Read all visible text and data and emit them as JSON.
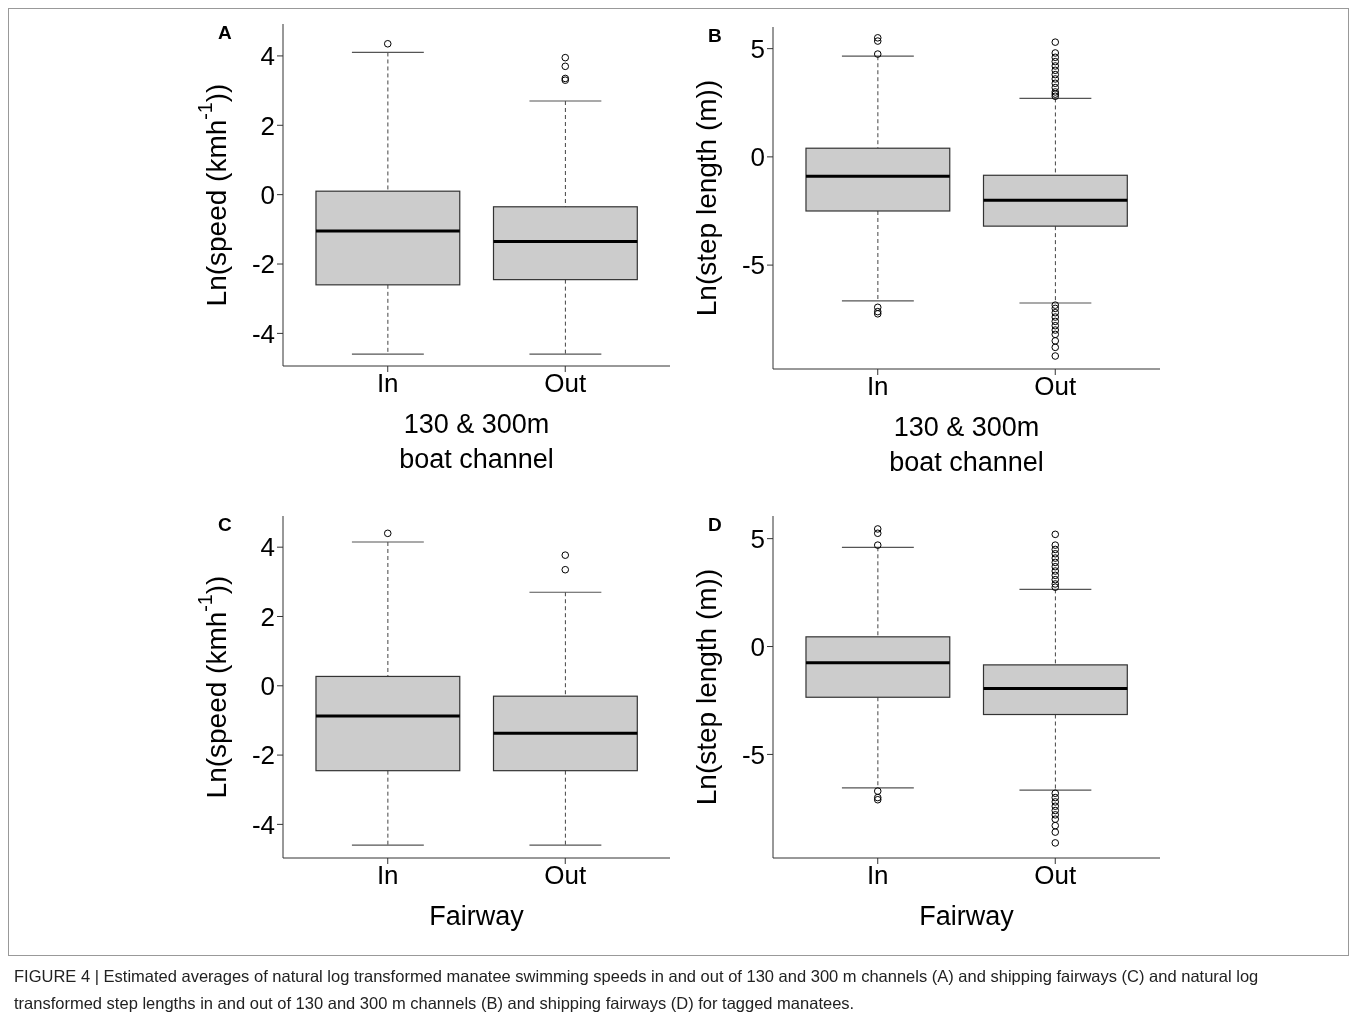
{
  "chart_data": [
    {
      "type": "box",
      "title": "A",
      "categories": [
        "In",
        "Out"
      ],
      "xlabel": "130 & 300m boat channel",
      "ylabel": "Ln(speed (kmh$^{-1}$))",
      "color": "#cccccc",
      "ylim": [
        -4.94,
        4.92
      ],
      "yticks": [
        -4,
        -2,
        0,
        2,
        4
      ],
      "boxes": [
        {
          "low": -4.6,
          "q1": -2.6,
          "median": -1.05,
          "q3": 0.1,
          "high": 4.1,
          "outliers": [
            4.35
          ]
        },
        {
          "low": -4.6,
          "q1": -2.45,
          "median": -1.35,
          "q3": -0.35,
          "high": 2.7,
          "outliers": [
            3.3,
            3.35,
            3.7,
            3.95
          ]
        }
      ]
    },
    {
      "type": "box",
      "title": "B",
      "categories": [
        "In",
        "Out"
      ],
      "xlabel": "130 & 300m boat channel",
      "ylabel": "Ln(step length (m))",
      "color": "#cccccc",
      "ylim": [
        -9.8,
        6.0
      ],
      "yticks": [
        -5,
        0,
        5
      ],
      "boxes": [
        {
          "low": -6.65,
          "q1": -2.5,
          "median": -0.9,
          "q3": 0.4,
          "high": 4.65,
          "outliers": [
            -7.25,
            -7.15,
            -6.95,
            4.75,
            5.35,
            5.5
          ]
        },
        {
          "low": -6.75,
          "q1": -3.2,
          "median": -2.0,
          "q3": -0.85,
          "high": 2.7,
          "outliers": [
            -9.2,
            -8.8,
            -8.5,
            -8.2,
            -8.0,
            -7.8,
            -7.6,
            -7.4,
            -7.2,
            -7.0,
            -6.85,
            2.8,
            2.9,
            3.0,
            3.2,
            3.4,
            3.6,
            3.8,
            4.0,
            4.2,
            4.4,
            4.6,
            4.8,
            5.3
          ]
        }
      ]
    },
    {
      "type": "box",
      "title": "C",
      "categories": [
        "In",
        "Out"
      ],
      "xlabel": "Fairway",
      "ylabel": "Ln(speed (kmh$^{-1}$))",
      "color": "#cccccc",
      "ylim": [
        -4.97,
        4.9
      ],
      "yticks": [
        -4,
        -2,
        0,
        2,
        4
      ],
      "boxes": [
        {
          "low": -4.6,
          "q1": -2.45,
          "median": -0.87,
          "q3": 0.27,
          "high": 4.15,
          "outliers": [
            4.4
          ]
        },
        {
          "low": -4.6,
          "q1": -2.45,
          "median": -1.37,
          "q3": -0.3,
          "high": 2.7,
          "outliers": [
            3.35,
            3.77
          ]
        }
      ]
    },
    {
      "type": "box",
      "title": "D",
      "categories": [
        "In",
        "Out"
      ],
      "xlabel": "Fairway",
      "ylabel": "Ln(step length (m))",
      "color": "#cccccc",
      "ylim": [
        -9.8,
        6.05
      ],
      "yticks": [
        -5,
        0,
        5
      ],
      "boxes": [
        {
          "low": -6.55,
          "q1": -2.35,
          "median": -0.75,
          "q3": 0.45,
          "high": 4.6,
          "outliers": [
            -7.1,
            -7.0,
            -6.7,
            4.7,
            5.25,
            5.45
          ]
        },
        {
          "low": -6.65,
          "q1": -3.15,
          "median": -1.95,
          "q3": -0.85,
          "high": 2.65,
          "outliers": [
            -9.1,
            -8.6,
            -8.3,
            -8.0,
            -7.8,
            -7.6,
            -7.4,
            -7.2,
            -7.0,
            -6.8,
            2.75,
            2.9,
            3.1,
            3.3,
            3.5,
            3.7,
            3.9,
            4.1,
            4.3,
            4.5,
            4.7,
            5.2
          ]
        }
      ],
      "annotations": [
        "FIGURE 4 | Estimated averages of natural log transformed manatee swimming speeds in and out of 130 and 300 m channels (A) and shipping fairways (C) and natural log transformed step lengths in and out of 130 and 300 m channels (B) and shipping fairways (D) for tagged manatees."
      ]
    }
  ]
}
